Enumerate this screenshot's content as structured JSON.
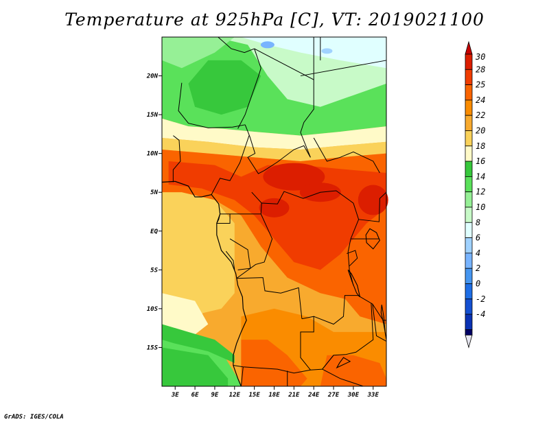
{
  "title": "Temperature at 925hPa [C], VT: 2019021100",
  "credit": "GrADS: IGES/COLA",
  "map": {
    "lon_range": [
      1,
      35
    ],
    "lat_range": [
      -20,
      25
    ],
    "lat_ticks": [
      {
        "value": 20,
        "label": "20N"
      },
      {
        "value": 15,
        "label": "15N"
      },
      {
        "value": 10,
        "label": "10N"
      },
      {
        "value": 5,
        "label": "5N"
      },
      {
        "value": 0,
        "label": "EQ"
      },
      {
        "value": -5,
        "label": "5S"
      },
      {
        "value": -10,
        "label": "10S"
      },
      {
        "value": -15,
        "label": "15S"
      }
    ],
    "lon_ticks": [
      {
        "value": 3,
        "label": "3E"
      },
      {
        "value": 6,
        "label": "6E"
      },
      {
        "value": 9,
        "label": "9E"
      },
      {
        "value": 12,
        "label": "12E"
      },
      {
        "value": 15,
        "label": "15E"
      },
      {
        "value": 18,
        "label": "18E"
      },
      {
        "value": 21,
        "label": "21E"
      },
      {
        "value": 24,
        "label": "24E"
      },
      {
        "value": 27,
        "label": "27E"
      },
      {
        "value": 30,
        "label": "30E"
      },
      {
        "value": 33,
        "label": "33E"
      }
    ]
  },
  "legend": {
    "levels": [
      {
        "label": "30",
        "color": "#dc1e00"
      },
      {
        "label": "28",
        "color": "#f03c00"
      },
      {
        "label": "25",
        "color": "#fa6400"
      },
      {
        "label": "24",
        "color": "#fa8c00"
      },
      {
        "label": "22",
        "color": "#f8aa2e"
      },
      {
        "label": "20",
        "color": "#fad25a"
      },
      {
        "label": "18",
        "color": "#fffac8"
      },
      {
        "label": "16",
        "color": "#37c83c"
      },
      {
        "label": "14",
        "color": "#5ae15a"
      },
      {
        "label": "12",
        "color": "#96f096"
      },
      {
        "label": "10",
        "color": "#c8fac8"
      },
      {
        "label": "8",
        "color": "#e0ffff"
      },
      {
        "label": "6",
        "color": "#a0d2ff"
      },
      {
        "label": "4",
        "color": "#78b4ff"
      },
      {
        "label": "2",
        "color": "#4696f0"
      },
      {
        "label": "0",
        "color": "#1e6ee6"
      },
      {
        "label": "-2",
        "color": "#1450d2"
      },
      {
        "label": "-4",
        "color": "#0a32b4"
      }
    ],
    "top_color": "#c80000",
    "bottom_color": "#000064",
    "below_color": "#e6e6f0"
  }
}
